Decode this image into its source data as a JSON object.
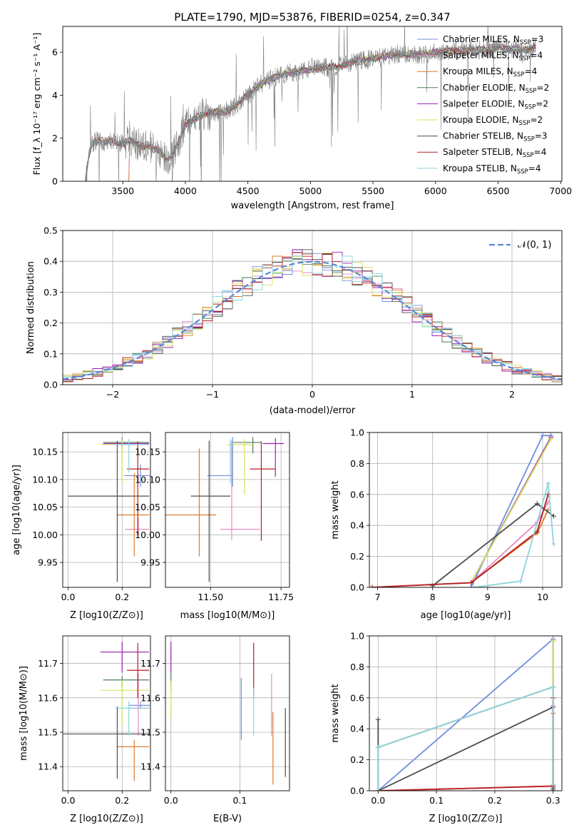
{
  "figure": {
    "title": "PLATE=1790, MJD=53876, FIBERID=0254, z=0.347"
  },
  "palette": {
    "Chabrier MILES": "#6f8fdc",
    "Salpeter MILES": "#e88ac2",
    "Kroupa MILES": "#e07a2b",
    "Chabrier ELODIE": "#4a7f55",
    "Salpeter ELODIE": "#9a1fb0",
    "Kroupa ELODIE": "#d4e25a",
    "Chabrier STELIB": "#4d4d4d",
    "Salpeter STELIB": "#b51f24",
    "Kroupa STELIB": "#8ad4dc",
    "data": "#808080"
  },
  "chart_data": [
    {
      "id": "spectrum",
      "type": "line",
      "xlabel": "wavelength [Angstrom, rest frame]",
      "ylabel": "Flux [f_λ 10^-17 erg cm^-2 s^-1 A^-1]",
      "xlim": [
        3020,
        7010
      ],
      "ylim": [
        0,
        7.2
      ],
      "xticks": [
        3500,
        4000,
        4500,
        5000,
        5500,
        6000,
        6500,
        7000
      ],
      "yticks": [
        0,
        2,
        4,
        6
      ],
      "continuum": [
        [
          3200,
          0
        ],
        [
          3230,
          1.3
        ],
        [
          3260,
          1.8
        ],
        [
          3300,
          1.9
        ],
        [
          3350,
          1.85
        ],
        [
          3400,
          1.9
        ],
        [
          3450,
          1.8
        ],
        [
          3500,
          1.75
        ],
        [
          3550,
          1.9
        ],
        [
          3600,
          1.8
        ],
        [
          3650,
          1.6
        ],
        [
          3700,
          1.7
        ],
        [
          3750,
          1.5
        ],
        [
          3800,
          1.4
        ],
        [
          3850,
          1.0
        ],
        [
          3900,
          1.3
        ],
        [
          3950,
          1.9
        ],
        [
          4000,
          2.6
        ],
        [
          4100,
          3.0
        ],
        [
          4200,
          3.2
        ],
        [
          4300,
          3.2
        ],
        [
          4400,
          3.5
        ],
        [
          4500,
          4.0
        ],
        [
          4600,
          4.5
        ],
        [
          4700,
          4.8
        ],
        [
          4800,
          5.0
        ],
        [
          4900,
          5.1
        ],
        [
          5000,
          5.2
        ],
        [
          5100,
          5.3
        ],
        [
          5200,
          5.3
        ],
        [
          5300,
          5.5
        ],
        [
          5400,
          5.6
        ],
        [
          5500,
          5.7
        ],
        [
          5600,
          5.8
        ],
        [
          5700,
          5.9
        ],
        [
          5800,
          5.9
        ],
        [
          5900,
          5.9
        ],
        [
          6000,
          6.0
        ],
        [
          6100,
          6.05
        ],
        [
          6200,
          6.1
        ],
        [
          6300,
          6.1
        ],
        [
          6400,
          6.15
        ],
        [
          6500,
          6.2
        ],
        [
          6600,
          6.15
        ],
        [
          6700,
          6.1
        ],
        [
          6800,
          6.2
        ]
      ],
      "legend": [
        {
          "label": "Chabrier MILES, N",
          "n": "=3"
        },
        {
          "label": "Salpeter MILES, N",
          "n": "=4"
        },
        {
          "label": "Kroupa MILES, N",
          "n": "=4"
        },
        {
          "label": "Chabrier ELODIE, N",
          "n": "=2"
        },
        {
          "label": "Salpeter ELODIE, N",
          "n": "=2"
        },
        {
          "label": "Kroupa ELODIE, N",
          "n": "=2"
        },
        {
          "label": "Chabrier STELIB, N",
          "n": "=3"
        },
        {
          "label": "Salpeter STELIB, N",
          "n": "=4"
        },
        {
          "label": "Kroupa STELIB, N",
          "n": "=4"
        }
      ],
      "legend_sub": "SSP",
      "legend_loc": "upper right"
    },
    {
      "id": "residuals",
      "type": "line",
      "xlabel": "(data-model)/error",
      "ylabel": "Normed distribution",
      "xlim": [
        -2.5,
        2.5
      ],
      "ylim": [
        0,
        0.5
      ],
      "xticks": [
        -2,
        -1,
        0,
        1,
        2
      ],
      "yticks": [
        0.0,
        0.1,
        0.2,
        0.3,
        0.4,
        0.5
      ],
      "grid": true,
      "normal_label": "𝒩(0, 1)",
      "bin_width": 0.1,
      "bin_start": -2.5
    },
    {
      "id": "age_vs_Z",
      "type": "scatter",
      "xlabel": "Z [log10(Z/Z⊙)]",
      "ylabel": "age  [log10(age/yr)]",
      "xlim": [
        -0.02,
        0.305
      ],
      "ylim": [
        9.905,
        10.185
      ],
      "xticks": [
        0.0,
        0.2
      ],
      "yticks": [
        9.95,
        10.0,
        10.05,
        10.1,
        10.15
      ],
      "grid": true,
      "points": [
        {
          "model": "Chabrier MILES",
          "x": 0.268,
          "y": 10.107,
          "xerr": [
            0.06,
            0.035
          ],
          "yerr": [
            0.02,
            0.02
          ]
        },
        {
          "model": "Salpeter MILES",
          "x": 0.26,
          "y": 10.01,
          "xerr": [
            0.05,
            0.04
          ],
          "yerr": [
            0.01,
            0.02
          ]
        },
        {
          "model": "Kroupa MILES",
          "x": 0.245,
          "y": 10.036,
          "xerr": [
            0.065,
            0.055
          ],
          "yerr": [
            0.075,
            0.075
          ]
        },
        {
          "model": "Chabrier ELODIE",
          "x": 0.2,
          "y": 10.167,
          "xerr": [
            0.07,
            0.1
          ],
          "yerr": [
            0.01,
            0.008
          ]
        },
        {
          "model": "Salpeter ELODIE",
          "x": 0.2,
          "y": 10.165,
          "xerr": [
            0.07,
            0.1
          ],
          "yerr": [
            0.01,
            0.01
          ]
        },
        {
          "model": "Kroupa ELODIE",
          "x": 0.2,
          "y": 10.163,
          "xerr": [
            0.08,
            0.1
          ],
          "yerr": [
            0.07,
            0.01
          ]
        },
        {
          "model": "Chabrier STELIB",
          "x": 0.182,
          "y": 10.07,
          "xerr": [
            0.182,
            0.118
          ],
          "yerr": [
            0.155,
            0.1
          ]
        },
        {
          "model": "Salpeter STELIB",
          "x": 0.258,
          "y": 10.119,
          "xerr": [
            0.04,
            0.042
          ],
          "yerr": [
            0.12,
            0.05
          ]
        },
        {
          "model": "Kroupa STELIB",
          "x": 0.225,
          "y": 10.163,
          "xerr": [
            0.05,
            0.075
          ],
          "yerr": [
            0.05,
            0.01
          ]
        }
      ]
    },
    {
      "id": "age_vs_mass",
      "type": "scatter",
      "xlabel": "mass [log10(M/M⊙)]",
      "ylabel": "",
      "xlim": [
        11.34,
        11.78
      ],
      "ylim": [
        9.905,
        10.185
      ],
      "xticks": [
        11.5,
        11.75
      ],
      "yticks": [
        9.95,
        10.0,
        10.05,
        10.1,
        10.15
      ],
      "grid": true,
      "points": [
        {
          "model": "Chabrier MILES",
          "x": 11.578,
          "y": 10.107,
          "xerr": [
            0.09,
            0.0
          ],
          "yerr": [
            0.02,
            0.07
          ]
        },
        {
          "model": "Salpeter MILES",
          "x": 11.575,
          "y": 10.01,
          "xerr": [
            0.04,
            0.1
          ],
          "yerr": [
            0.02,
            0.16
          ]
        },
        {
          "model": "Kroupa MILES",
          "x": 11.46,
          "y": 10.036,
          "xerr": [
            0.12,
            0.06
          ],
          "yerr": [
            0.075,
            0.12
          ]
        },
        {
          "model": "Chabrier ELODIE",
          "x": 11.65,
          "y": 10.167,
          "xerr": [
            0.07,
            0.03
          ],
          "yerr": [
            0.02,
            0.01
          ]
        },
        {
          "model": "Salpeter ELODIE",
          "x": 11.73,
          "y": 10.165,
          "xerr": [
            0.045,
            0.03
          ],
          "yerr": [
            0.06,
            0.01
          ]
        },
        {
          "model": "Kroupa ELODIE",
          "x": 11.62,
          "y": 10.163,
          "xerr": [
            0.06,
            0.03
          ],
          "yerr": [
            0.09,
            0.01
          ]
        },
        {
          "model": "Chabrier STELIB",
          "x": 11.495,
          "y": 10.07,
          "xerr": [
            0.065,
            0.075
          ],
          "yerr": [
            0.155,
            0.1
          ]
        },
        {
          "model": "Salpeter STELIB",
          "x": 11.68,
          "y": 10.119,
          "xerr": [
            0.04,
            0.05
          ],
          "yerr": [
            0.13,
            0.05
          ]
        },
        {
          "model": "Kroupa STELIB",
          "x": 11.57,
          "y": 10.163,
          "xerr": [
            0.0,
            0.01
          ],
          "yerr": [
            0.07,
            0.01
          ]
        }
      ]
    },
    {
      "id": "mass_weight_vs_age",
      "type": "line",
      "xlabel": "age  [log10(age/yr)]",
      "ylabel": "mass weight",
      "xlim": [
        6.85,
        10.35
      ],
      "ylim": [
        0,
        1.0
      ],
      "xticks": [
        7,
        8,
        9,
        10
      ],
      "yticks": [
        0.0,
        0.2,
        0.4,
        0.6,
        0.8,
        1.0
      ],
      "grid": true,
      "series": [
        {
          "model": "Chabrier MILES",
          "x": [
            8.7,
            10.0,
            10.15
          ],
          "y": [
            0.0,
            0.98,
            0.98
          ]
        },
        {
          "model": "Salpeter MILES",
          "x": [
            6.9,
            8.7,
            9.9,
            10.1
          ],
          "y": [
            0.0,
            0.03,
            0.42,
            0.55
          ]
        },
        {
          "model": "Kroupa MILES",
          "x": [
            6.9,
            8.7,
            9.9,
            10.1
          ],
          "y": [
            0.0,
            0.03,
            0.35,
            0.5
          ]
        },
        {
          "model": "Chabrier ELODIE",
          "x": [
            8.7,
            10.15
          ],
          "y": [
            0.03,
            0.96
          ]
        },
        {
          "model": "Salpeter ELODIE",
          "x": [
            8.7,
            10.15
          ],
          "y": [
            0.03,
            0.97
          ]
        },
        {
          "model": "Kroupa ELODIE",
          "x": [
            8.7,
            10.15
          ],
          "y": [
            0.03,
            0.96
          ]
        },
        {
          "model": "Chabrier STELIB",
          "x": [
            8.0,
            9.9,
            10.2
          ],
          "y": [
            0.01,
            0.54,
            0.46
          ]
        },
        {
          "model": "Salpeter STELIB",
          "x": [
            6.9,
            8.7,
            9.9,
            10.1
          ],
          "y": [
            0.0,
            0.03,
            0.36,
            0.6
          ]
        },
        {
          "model": "Kroupa STELIB",
          "x": [
            8.75,
            9.6,
            10.1,
            10.2
          ],
          "y": [
            0.0,
            0.04,
            0.67,
            0.28
          ]
        }
      ]
    },
    {
      "id": "mass_vs_Z",
      "type": "scatter",
      "xlabel": "Z [log10(Z/Z⊙)]",
      "ylabel": "mass [log10(M/M⊙)]",
      "xlim": [
        -0.02,
        0.305
      ],
      "ylim": [
        11.33,
        11.78
      ],
      "xticks": [
        0.0,
        0.2
      ],
      "yticks": [
        11.4,
        11.5,
        11.6,
        11.7
      ],
      "grid": true,
      "points": [
        {
          "model": "Chabrier MILES",
          "x": 0.268,
          "y": 11.578,
          "xerr": [
            0.045,
            0.035
          ],
          "yerr": [
            0.01,
            0.01
          ]
        },
        {
          "model": "Salpeter MILES",
          "x": 0.26,
          "y": 11.57,
          "xerr": [
            0.04,
            0.04
          ],
          "yerr": [
            0.08,
            0.1
          ]
        },
        {
          "model": "Kroupa MILES",
          "x": 0.245,
          "y": 11.458,
          "xerr": [
            0.065,
            0.055
          ],
          "yerr": [
            0.1,
            0.02
          ]
        },
        {
          "model": "Chabrier ELODIE",
          "x": 0.2,
          "y": 11.652,
          "xerr": [
            0.07,
            0.1
          ],
          "yerr": [
            0.02,
            0.01
          ]
        },
        {
          "model": "Salpeter ELODIE",
          "x": 0.2,
          "y": 11.733,
          "xerr": [
            0.08,
            0.1
          ],
          "yerr": [
            0.06,
            0.03
          ]
        },
        {
          "model": "Kroupa ELODIE",
          "x": 0.2,
          "y": 11.622,
          "xerr": [
            0.08,
            0.1
          ],
          "yerr": [
            0.1,
            0.03
          ]
        },
        {
          "model": "Chabrier STELIB",
          "x": 0.182,
          "y": 11.495,
          "xerr": [
            0.2,
            0.118
          ],
          "yerr": [
            0.13,
            0.08
          ]
        },
        {
          "model": "Salpeter STELIB",
          "x": 0.258,
          "y": 11.68,
          "xerr": [
            0.04,
            0.042
          ],
          "yerr": [
            0.08,
            0.08
          ]
        },
        {
          "model": "Kroupa STELIB",
          "x": 0.225,
          "y": 11.57,
          "xerr": [
            0.05,
            0.075
          ],
          "yerr": [
            0.08,
            0.02
          ]
        }
      ]
    },
    {
      "id": "mass_vs_EBV",
      "type": "scatter",
      "xlabel": "E(B-V)",
      "ylabel": "",
      "xlim": [
        -0.008,
        0.172
      ],
      "ylim": [
        11.33,
        11.78
      ],
      "xticks": [
        0.0,
        0.1
      ],
      "yticks": [
        11.4,
        11.5,
        11.6,
        11.7
      ],
      "grid": true,
      "points": [
        {
          "model": "Chabrier MILES",
          "x": 0.102,
          "y": 11.578,
          "yerr": [
            0.1,
            0.08
          ]
        },
        {
          "model": "Salpeter MILES",
          "x": 0.146,
          "y": 11.57,
          "yerr": [
            0.08,
            0.1
          ]
        },
        {
          "model": "Kroupa MILES",
          "x": 0.148,
          "y": 11.458,
          "yerr": [
            0.11,
            0.1
          ]
        },
        {
          "model": "Chabrier ELODIE",
          "x": 0.0,
          "y": 11.652,
          "yerr": [
            0.03,
            0.02
          ]
        },
        {
          "model": "Salpeter ELODIE",
          "x": 0.0,
          "y": 11.733,
          "yerr": [
            0.06,
            0.03
          ]
        },
        {
          "model": "Kroupa ELODIE",
          "x": 0.0,
          "y": 11.6,
          "yerr": [
            0.06,
            0.05
          ]
        },
        {
          "model": "Chabrier STELIB",
          "x": 0.166,
          "y": 11.47,
          "yerr": [
            0.1,
            0.1
          ]
        },
        {
          "model": "Salpeter STELIB",
          "x": 0.12,
          "y": 11.68,
          "yerr": [
            0.08,
            0.08
          ]
        },
        {
          "model": "Kroupa STELIB",
          "x": 0.12,
          "y": 11.57,
          "yerr": [
            0.08,
            0.06
          ]
        }
      ]
    },
    {
      "id": "mass_weight_vs_Z",
      "type": "line",
      "xlabel": "Z [log10(Z/Z⊙)]",
      "ylabel": "mass weight",
      "xlim": [
        -0.015,
        0.315
      ],
      "ylim": [
        0,
        1.0
      ],
      "xticks": [
        0.0,
        0.1,
        0.2,
        0.3
      ],
      "yticks": [
        0.0,
        0.2,
        0.4,
        0.6,
        0.8,
        1.0
      ],
      "grid": true,
      "series": [
        {
          "model": "Chabrier MILES",
          "x": [
            0.0,
            0.3,
            0.3
          ],
          "y": [
            0.0,
            0.98,
            0.02
          ]
        },
        {
          "model": "Salpeter MILES",
          "x": [
            0.0,
            0.3,
            0.3
          ],
          "y": [
            0.0,
            0.03,
            0.55
          ]
        },
        {
          "model": "Kroupa MILES",
          "x": [
            0.0,
            0.3,
            0.3
          ],
          "y": [
            0.0,
            0.03,
            0.5
          ]
        },
        {
          "model": "Chabrier ELODIE",
          "x": [
            0.0,
            0.3,
            0.3
          ],
          "y": [
            0.28,
            0.67,
            0.0
          ]
        },
        {
          "model": "Salpeter ELODIE",
          "x": [
            0.0,
            0.3,
            0.3
          ],
          "y": [
            0.28,
            0.67,
            0.97
          ]
        },
        {
          "model": "Kroupa ELODIE",
          "x": [
            0.0,
            0.3,
            0.3
          ],
          "y": [
            0.28,
            0.67,
            0.97
          ]
        },
        {
          "model": "Chabrier STELIB",
          "x": [
            0.0,
            0.0,
            0.3,
            0.3
          ],
          "y": [
            0.46,
            0.0,
            0.54,
            0.01
          ]
        },
        {
          "model": "Salpeter STELIB",
          "x": [
            0.0,
            0.3,
            0.3
          ],
          "y": [
            0.0,
            0.03,
            0.6
          ]
        },
        {
          "model": "Kroupa STELIB",
          "x": [
            0.0,
            0.0,
            0.3,
            0.3
          ],
          "y": [
            0.0,
            0.28,
            0.67,
            0.04
          ]
        }
      ]
    }
  ]
}
